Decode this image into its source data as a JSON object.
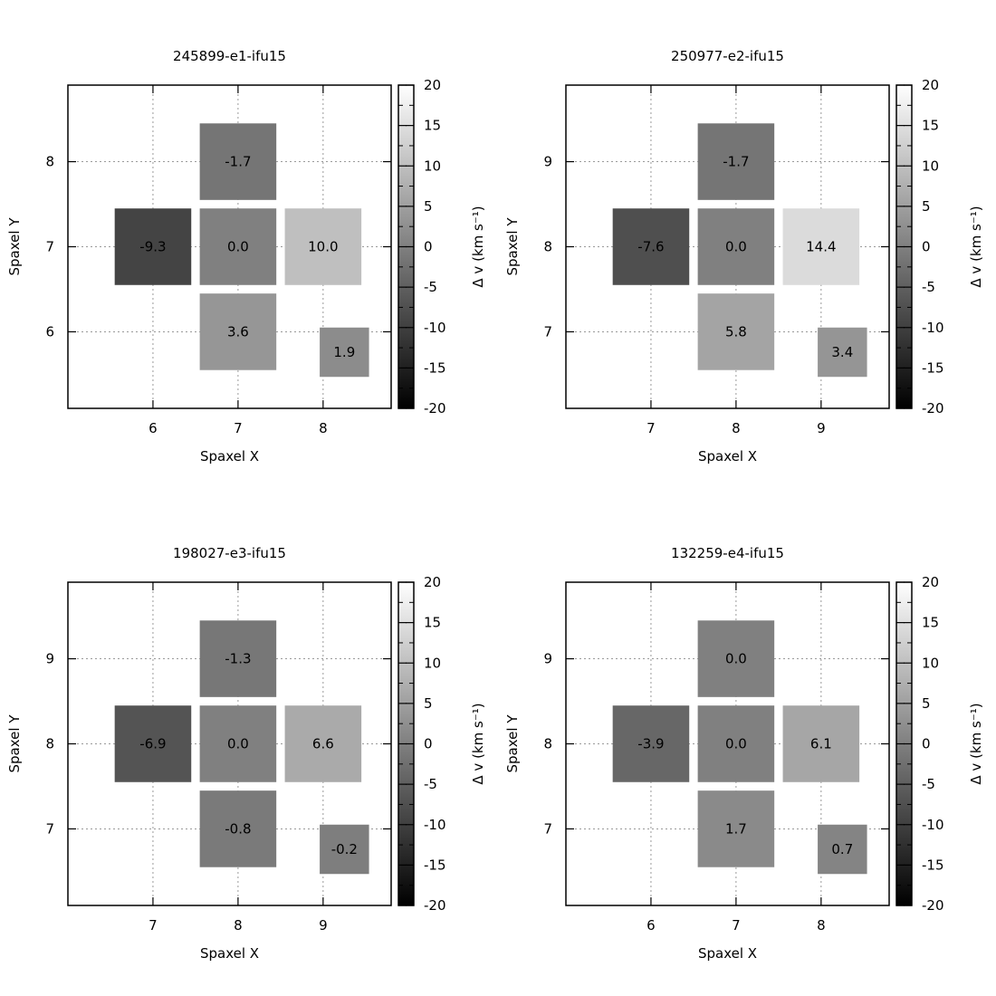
{
  "chart_data": [
    {
      "type": "heatmap",
      "title": "245899-e1-ifu15",
      "xlabel": "Spaxel X",
      "ylabel": "Spaxel Y",
      "colorbar_label": "Δ v (km s⁻¹)",
      "colorbar_range": [
        -20,
        20
      ],
      "colorbar_ticks": [
        "20",
        "15",
        "10",
        "5",
        "0",
        "-5",
        "-10",
        "-15",
        "-20"
      ],
      "xlim": [
        5.0,
        8.8
      ],
      "ylim": [
        5.1,
        8.9
      ],
      "x_ticks": [
        "6",
        "7",
        "8"
      ],
      "y_ticks": [
        "6",
        "7",
        "8"
      ],
      "cells": [
        {
          "x": 7,
          "y": 8,
          "value": -1.7,
          "label": "-1.7",
          "size": 0.9
        },
        {
          "x": 6,
          "y": 7,
          "value": -9.3,
          "label": "-9.3",
          "size": 0.9
        },
        {
          "x": 7,
          "y": 7,
          "value": 0.0,
          "label": "0.0",
          "size": 0.9
        },
        {
          "x": 8,
          "y": 7,
          "value": 10.0,
          "label": "10.0",
          "size": 0.9
        },
        {
          "x": 7,
          "y": 6,
          "value": 3.6,
          "label": "3.6",
          "size": 0.9
        },
        {
          "x": 8.25,
          "y": 5.76,
          "value": 1.9,
          "label": "1.9",
          "size": 0.58
        }
      ]
    },
    {
      "type": "heatmap",
      "title": "250977-e2-ifu15",
      "xlabel": "Spaxel X",
      "ylabel": "Spaxel Y",
      "colorbar_label": "Δ v (km s⁻¹)",
      "colorbar_range": [
        -20,
        20
      ],
      "colorbar_ticks": [
        "20",
        "15",
        "10",
        "5",
        "0",
        "-5",
        "-10",
        "-15",
        "-20"
      ],
      "xlim": [
        6.0,
        9.8
      ],
      "ylim": [
        6.1,
        9.9
      ],
      "x_ticks": [
        "7",
        "8",
        "9"
      ],
      "y_ticks": [
        "7",
        "8",
        "9"
      ],
      "cells": [
        {
          "x": 8,
          "y": 9,
          "value": -1.7,
          "label": "-1.7",
          "size": 0.9
        },
        {
          "x": 7,
          "y": 8,
          "value": -7.6,
          "label": "-7.6",
          "size": 0.9
        },
        {
          "x": 8,
          "y": 8,
          "value": 0.0,
          "label": "0.0",
          "size": 0.9
        },
        {
          "x": 9,
          "y": 8,
          "value": 14.4,
          "label": "14.4",
          "size": 0.9
        },
        {
          "x": 8,
          "y": 7,
          "value": 5.8,
          "label": "5.8",
          "size": 0.9
        },
        {
          "x": 9.25,
          "y": 6.76,
          "value": 3.4,
          "label": "3.4",
          "size": 0.58
        }
      ]
    },
    {
      "type": "heatmap",
      "title": "198027-e3-ifu15",
      "xlabel": "Spaxel X",
      "ylabel": "Spaxel Y",
      "colorbar_label": "Δ v (km s⁻¹)",
      "colorbar_range": [
        -20,
        20
      ],
      "colorbar_ticks": [
        "20",
        "15",
        "10",
        "5",
        "0",
        "-5",
        "-10",
        "-15",
        "-20"
      ],
      "xlim": [
        6.0,
        9.8
      ],
      "ylim": [
        6.1,
        9.9
      ],
      "x_ticks": [
        "7",
        "8",
        "9"
      ],
      "y_ticks": [
        "7",
        "8",
        "9"
      ],
      "cells": [
        {
          "x": 8,
          "y": 9,
          "value": -1.3,
          "label": "-1.3",
          "size": 0.9
        },
        {
          "x": 7,
          "y": 8,
          "value": -6.9,
          "label": "-6.9",
          "size": 0.9
        },
        {
          "x": 8,
          "y": 8,
          "value": 0.0,
          "label": "0.0",
          "size": 0.9
        },
        {
          "x": 9,
          "y": 8,
          "value": 6.6,
          "label": "6.6",
          "size": 0.9
        },
        {
          "x": 8,
          "y": 7,
          "value": -0.8,
          "label": "-0.8",
          "size": 0.9
        },
        {
          "x": 9.25,
          "y": 6.76,
          "value": -0.2,
          "label": "-0.2",
          "size": 0.58
        }
      ]
    },
    {
      "type": "heatmap",
      "title": "132259-e4-ifu15",
      "xlabel": "Spaxel X",
      "ylabel": "Spaxel Y",
      "colorbar_label": "Δ v (km s⁻¹)",
      "colorbar_range": [
        -20,
        20
      ],
      "colorbar_ticks": [
        "20",
        "15",
        "10",
        "5",
        "0",
        "-5",
        "-10",
        "-15",
        "-20"
      ],
      "xlim": [
        5.0,
        8.8
      ],
      "ylim": [
        6.1,
        9.9
      ],
      "x_ticks": [
        "6",
        "7",
        "8"
      ],
      "y_ticks": [
        "7",
        "8",
        "9"
      ],
      "cells": [
        {
          "x": 7,
          "y": 9,
          "value": 0.0,
          "label": "0.0",
          "size": 0.9
        },
        {
          "x": 6,
          "y": 8,
          "value": -3.9,
          "label": "-3.9",
          "size": 0.9
        },
        {
          "x": 7,
          "y": 8,
          "value": 0.0,
          "label": "0.0",
          "size": 0.9
        },
        {
          "x": 8,
          "y": 8,
          "value": 6.1,
          "label": "6.1",
          "size": 0.9
        },
        {
          "x": 7,
          "y": 7,
          "value": 1.7,
          "label": "1.7",
          "size": 0.9
        },
        {
          "x": 8.25,
          "y": 6.76,
          "value": 0.7,
          "label": "0.7",
          "size": 0.58
        }
      ]
    }
  ]
}
